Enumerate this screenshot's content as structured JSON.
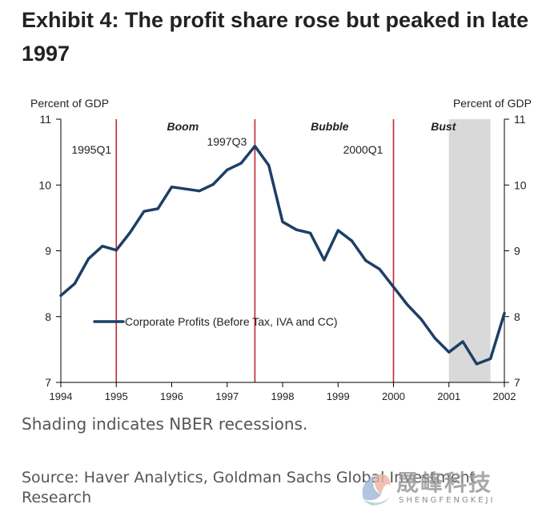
{
  "title": "Exhibit 4: The profit share rose but peaked in late 1997",
  "footnote": "Shading indicates NBER recessions.",
  "source": "Source: Haver Analytics, Goldman Sachs Global Investment Research",
  "watermark": {
    "text": "晟峰科技",
    "subtext": "SHENGFENGKEJI"
  },
  "colors": {
    "line": "#1c3f66",
    "vline": "#c0282d",
    "recession": "#d9d9d9",
    "axis": "#000000"
  },
  "chart_data": {
    "type": "line",
    "title": "Exhibit 4: The profit share rose but peaked in late 1997",
    "ylabel_left": "Percent of GDP",
    "ylabel_right": "Percent of GDP",
    "xlim": [
      1994,
      2002
    ],
    "ylim": [
      7,
      11
    ],
    "x_ticks": [
      "1994",
      "1995",
      "1996",
      "1997",
      "1998",
      "1999",
      "2000",
      "2001",
      "2002"
    ],
    "y_ticks": [
      "7",
      "8",
      "9",
      "10",
      "11"
    ],
    "legend": {
      "position": "lower-left",
      "label": "Corporate Profits (Before Tax, IVA and CC)"
    },
    "series": [
      {
        "name": "Corporate Profits (Before Tax, IVA and CC)",
        "x": [
          1994.0,
          1994.25,
          1994.5,
          1994.75,
          1995.0,
          1995.25,
          1995.5,
          1995.75,
          1996.0,
          1996.25,
          1996.5,
          1996.75,
          1997.0,
          1997.25,
          1997.5,
          1997.75,
          1998.0,
          1998.25,
          1998.5,
          1998.75,
          1999.0,
          1999.25,
          1999.5,
          1999.75,
          2000.0,
          2000.25,
          2000.5,
          2000.75,
          2001.0,
          2001.25,
          2001.5,
          2001.75,
          2002.0
        ],
        "values": [
          8.32,
          8.5,
          8.88,
          9.07,
          9.01,
          9.28,
          9.6,
          9.64,
          9.97,
          9.94,
          9.91,
          10.01,
          10.23,
          10.33,
          10.59,
          10.3,
          9.44,
          9.32,
          9.27,
          8.86,
          9.31,
          9.15,
          8.85,
          8.72,
          8.45,
          8.18,
          7.96,
          7.67,
          7.46,
          7.62,
          7.28,
          7.36,
          8.05
        ]
      }
    ],
    "vertical_lines": [
      {
        "x": 1995.0,
        "label": "1995Q1"
      },
      {
        "x": 1997.5,
        "label": "1997Q3"
      },
      {
        "x": 2000.0,
        "label": "2000Q1"
      }
    ],
    "shaded_regions": [
      {
        "from": 2001.0,
        "to": 2001.75,
        "label": "Recession"
      }
    ],
    "period_labels": [
      {
        "label": "Boom",
        "x": 1996.2
      },
      {
        "label": "Bubble",
        "x": 1998.85
      },
      {
        "label": "Bust",
        "x": 2000.9
      }
    ]
  }
}
